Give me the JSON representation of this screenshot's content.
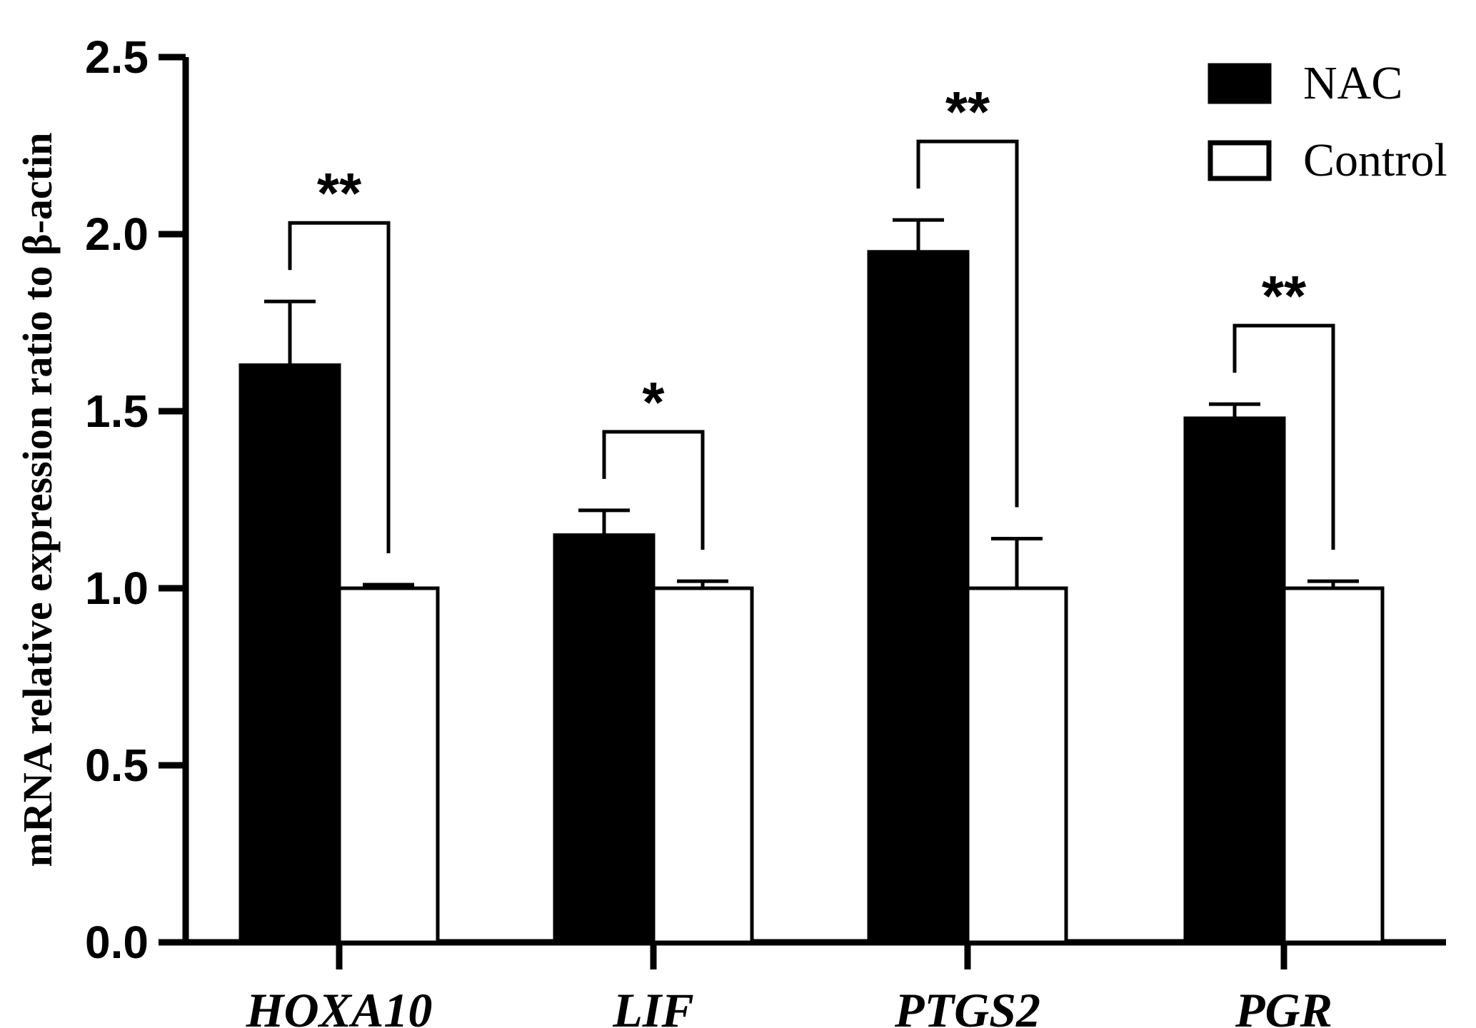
{
  "chart_data": {
    "type": "bar",
    "title": "",
    "xlabel": "",
    "ylabel": "mRNA relative expression ratio to β-actin",
    "ylim": [
      0,
      2.5
    ],
    "yticks": [
      "0.0",
      "0.5",
      "1.0",
      "1.5",
      "2.0",
      "2.5"
    ],
    "categories": [
      "HOXA10",
      "LIF",
      "PTGS2",
      "PGR"
    ],
    "series": [
      {
        "name": "NAC",
        "color": "#000000",
        "values": [
          1.63,
          1.15,
          1.95,
          1.48
        ],
        "errors": [
          0.18,
          0.07,
          0.09,
          0.04
        ]
      },
      {
        "name": "Control",
        "color": "#ffffff",
        "values": [
          1.0,
          1.0,
          1.0,
          1.0
        ],
        "errors": [
          0.01,
          0.02,
          0.14,
          0.02
        ]
      }
    ],
    "significance": [
      "**",
      "*",
      "**",
      "**"
    ],
    "legend": {
      "position": "top-right",
      "entries": [
        "NAC",
        "Control"
      ]
    },
    "grid": false
  }
}
